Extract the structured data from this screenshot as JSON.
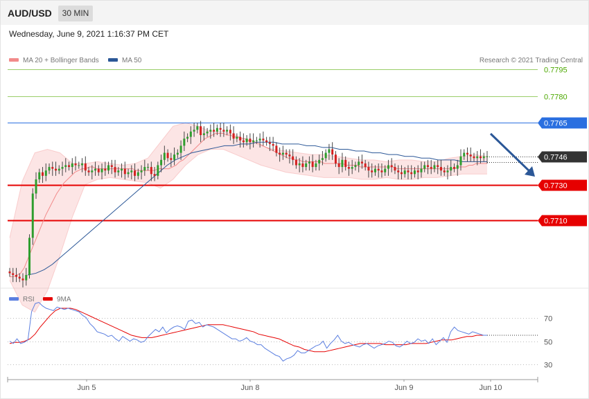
{
  "header": {
    "symbol": "AUD/USD",
    "timeframe": "30 MIN",
    "datetime": "Wednesday, June 9, 2021 1:16:37 PM CET"
  },
  "colors": {
    "bollinger": "#f28a8a",
    "ma50": "#2b5797",
    "pivot_blue": "#2a6fe0",
    "support_red": "#e60000",
    "resistance_green": "#9acd68",
    "current_price": "#333333",
    "rsi": "#5b7fe0",
    "rsi_ma": "#e60000"
  },
  "chart_data": [
    {
      "type": "candlestick",
      "legend": [
        {
          "name": "MA 20 + Bollinger Bands",
          "icon": "legend-swatch"
        },
        {
          "name": "MA 50",
          "icon": "legend-swatch"
        }
      ],
      "copyright": "Research © 2021 Trading Central",
      "ylim": [
        0.767,
        0.7803
      ],
      "x_ticks": [
        "Jun 5",
        "Jun 8",
        "Jun 9",
        "Jun 10"
      ],
      "levels": [
        {
          "value": 0.7795,
          "label": "0.7795",
          "role": "resistance"
        },
        {
          "value": 0.778,
          "label": "0.7780",
          "role": "resistance"
        },
        {
          "value": 0.7765,
          "label": "0.7765",
          "role": "pivot"
        },
        {
          "value": 0.7746,
          "label": "0.7746",
          "role": "current"
        },
        {
          "value": 0.773,
          "label": "0.7730",
          "role": "support"
        },
        {
          "value": 0.771,
          "label": "0.7710",
          "role": "support"
        }
      ],
      "close": [
        0.768,
        0.7679,
        0.7678,
        0.7677,
        0.7676,
        0.7679,
        0.77,
        0.7725,
        0.7733,
        0.7737,
        0.7735,
        0.7738,
        0.774,
        0.7739,
        0.7738,
        0.7739,
        0.774,
        0.7741,
        0.774,
        0.7742,
        0.7741,
        0.7741,
        0.7742,
        0.7738,
        0.7737,
        0.7738,
        0.7739,
        0.7737,
        0.7739,
        0.7738,
        0.7741,
        0.774,
        0.7737,
        0.7738,
        0.7739,
        0.7736,
        0.7737,
        0.7738,
        0.7735,
        0.7737,
        0.7738,
        0.774,
        0.774,
        0.7736,
        0.7735,
        0.7741,
        0.7744,
        0.7748,
        0.7745,
        0.7744,
        0.7747,
        0.7748,
        0.7752,
        0.7756,
        0.7757,
        0.776,
        0.7761,
        0.7763,
        0.7758,
        0.7759,
        0.776,
        0.7761,
        0.776,
        0.7762,
        0.7761,
        0.776,
        0.7761,
        0.7759,
        0.7756,
        0.7757,
        0.7755,
        0.7754,
        0.7756,
        0.7754,
        0.7755,
        0.7755,
        0.7756,
        0.7755,
        0.7754,
        0.7753,
        0.7752,
        0.7748,
        0.7747,
        0.7748,
        0.7747,
        0.7746,
        0.7744,
        0.7741,
        0.7742,
        0.774,
        0.7742,
        0.7743,
        0.774,
        0.7742,
        0.7744,
        0.7745,
        0.7748,
        0.775,
        0.7747,
        0.7742,
        0.774,
        0.7744,
        0.774,
        0.7739,
        0.774,
        0.7741,
        0.7743,
        0.7742,
        0.774,
        0.7738,
        0.7737,
        0.7739,
        0.7738,
        0.7737,
        0.7739,
        0.7741,
        0.774,
        0.7738,
        0.7737,
        0.7736,
        0.7738,
        0.7737,
        0.7736,
        0.7738,
        0.7737,
        0.7739,
        0.7741,
        0.774,
        0.7739,
        0.7741,
        0.774,
        0.7738,
        0.7737,
        0.7738,
        0.774,
        0.7739,
        0.7741,
        0.7746,
        0.7748,
        0.7747,
        0.7746,
        0.7745,
        0.7746,
        0.7745,
        0.7746,
        0.7746
      ],
      "ma20": [
        0.7678,
        0.7678,
        0.7679,
        0.768,
        0.7683,
        0.7688,
        0.7693,
        0.7698,
        0.7703,
        0.7708,
        0.7713,
        0.7717,
        0.7721,
        0.7725,
        0.7728,
        0.7731,
        0.7733,
        0.7735,
        0.7737,
        0.7738,
        0.7739,
        0.7739,
        0.774,
        0.774,
        0.7739,
        0.7739,
        0.7739,
        0.7739,
        0.7739,
        0.7739,
        0.7739,
        0.7739,
        0.7739,
        0.7739,
        0.7739,
        0.7738,
        0.7738,
        0.7738,
        0.7738,
        0.7738,
        0.7738,
        0.7739,
        0.7739,
        0.7739,
        0.7739,
        0.774,
        0.7741,
        0.7743,
        0.7744,
        0.7746,
        0.7748,
        0.775,
        0.7752,
        0.7754,
        0.7756,
        0.7757,
        0.7758,
        0.7759,
        0.7759,
        0.7759,
        0.7758,
        0.7758,
        0.7757,
        0.7757,
        0.7756,
        0.7756,
        0.7755,
        0.7755,
        0.7754,
        0.7753,
        0.7752,
        0.7751,
        0.775,
        0.7749,
        0.7748,
        0.7747,
        0.7746,
        0.7745,
        0.7745,
        0.7744,
        0.7744,
        0.7743,
        0.7743,
        0.7743,
        0.7743,
        0.7743,
        0.7743,
        0.7742,
        0.7742,
        0.7742,
        0.7742,
        0.7742,
        0.7742,
        0.7741,
        0.7741,
        0.7741,
        0.7741,
        0.774,
        0.774,
        0.774,
        0.774,
        0.774,
        0.774,
        0.774,
        0.774,
        0.774,
        0.774,
        0.7739,
        0.7739,
        0.7739,
        0.7739,
        0.7739,
        0.7739,
        0.7739,
        0.7739,
        0.7739,
        0.7739,
        0.7739,
        0.7739,
        0.7739,
        0.7739,
        0.7739,
        0.7739,
        0.7739,
        0.774,
        0.774,
        0.774,
        0.7741,
        0.7741,
        0.7742,
        0.7742,
        0.7742,
        0.7742
      ],
      "ma50": [
        0.7679,
        0.768,
        0.7682,
        0.7685,
        0.7689,
        0.7693,
        0.7697,
        0.7701,
        0.7705,
        0.7709,
        0.7713,
        0.7717,
        0.7721,
        0.7725,
        0.7729,
        0.7733,
        0.7737,
        0.7741,
        0.7744,
        0.7746,
        0.7748,
        0.7749,
        0.775,
        0.7751,
        0.7752,
        0.7752,
        0.7753,
        0.7753,
        0.7754,
        0.7754,
        0.7754,
        0.7753,
        0.7753,
        0.7753,
        0.7752,
        0.7752,
        0.7751,
        0.7751,
        0.775,
        0.775,
        0.7749,
        0.7749,
        0.7748,
        0.7748,
        0.7747,
        0.7747,
        0.7746,
        0.7746,
        0.7745,
        0.7745,
        0.7744,
        0.7744,
        0.7744,
        0.7743,
        0.7743,
        0.7743,
        0.7743
      ],
      "upper_band": [
        0.77,
        0.7732,
        0.7748,
        0.775,
        0.7748,
        0.7742,
        0.7742,
        0.7743,
        0.7742,
        0.7741,
        0.7742,
        0.7745,
        0.7754,
        0.7763,
        0.7765,
        0.7763,
        0.776,
        0.776,
        0.7758,
        0.7755,
        0.7752,
        0.775,
        0.7749,
        0.7748,
        0.7747,
        0.7747,
        0.7746,
        0.7745,
        0.7744,
        0.7744,
        0.7743,
        0.7744,
        0.7744,
        0.7743,
        0.7743,
        0.7745,
        0.7746,
        0.7747,
        0.7746
      ],
      "lower_band": [
        0.7676,
        0.7662,
        0.7658,
        0.767,
        0.769,
        0.7712,
        0.773,
        0.7733,
        0.7734,
        0.7733,
        0.7732,
        0.7731,
        0.7728,
        0.7733,
        0.7741,
        0.7747,
        0.775,
        0.775,
        0.7747,
        0.7744,
        0.7741,
        0.7739,
        0.7737,
        0.7736,
        0.7735,
        0.7734,
        0.7734,
        0.7734,
        0.7733,
        0.7733,
        0.7734,
        0.7733,
        0.7733,
        0.7734,
        0.7734,
        0.7735,
        0.7736,
        0.7736,
        0.7736
      ]
    },
    {
      "type": "line",
      "legend": [
        {
          "name": "RSI",
          "icon": "legend-swatch"
        },
        {
          "name": "9MA",
          "icon": "legend-swatch"
        }
      ],
      "ylim": [
        22,
        78
      ],
      "y_ticks": [
        70,
        50,
        30
      ],
      "series": [
        {
          "name": "RSI",
          "values": [
            50,
            48,
            52,
            48,
            49,
            51,
            75,
            82,
            83,
            80,
            78,
            77,
            76,
            79,
            78,
            77,
            78,
            77,
            76,
            75,
            72,
            70,
            65,
            62,
            58,
            57,
            56,
            54,
            55,
            52,
            50,
            54,
            52,
            50,
            52,
            51,
            49,
            50,
            54,
            57,
            60,
            58,
            62,
            57,
            60,
            62,
            63,
            62,
            60,
            67,
            68,
            65,
            66,
            62,
            64,
            63,
            62,
            60,
            58,
            56,
            54,
            52,
            52,
            50,
            51,
            53,
            50,
            49,
            47,
            47,
            44,
            42,
            40,
            38,
            37,
            33,
            35,
            36,
            38,
            42,
            40,
            40,
            42,
            44,
            46,
            47,
            50,
            44,
            48,
            51,
            55,
            50,
            48,
            49,
            47,
            46,
            45,
            47,
            48,
            46,
            44,
            46,
            47,
            48,
            50,
            49,
            46,
            45,
            47,
            50,
            48,
            49,
            52,
            50,
            51,
            48,
            52,
            47,
            50,
            53,
            49,
            58,
            62,
            59,
            58,
            57,
            56,
            58,
            57,
            56,
            55,
            55
          ]
        },
        {
          "name": "9MA",
          "values": [
            48,
            49,
            49,
            50,
            52,
            56,
            62,
            67,
            72,
            76,
            78,
            78,
            78,
            77,
            75,
            73,
            71,
            69,
            67,
            65,
            63,
            61,
            59,
            57,
            55,
            54,
            53,
            53,
            53,
            54,
            55,
            56,
            57,
            58,
            59,
            60,
            61,
            62,
            63,
            64,
            64,
            64,
            64,
            63,
            62,
            61,
            60,
            59,
            58,
            56,
            55,
            54,
            53,
            52,
            50,
            48,
            46,
            45,
            43,
            42,
            41,
            41,
            41,
            42,
            43,
            44,
            45,
            46,
            47,
            48,
            48,
            48,
            48,
            48,
            47,
            47,
            47,
            47,
            47,
            48,
            48,
            48,
            48,
            49,
            50,
            51,
            51,
            51,
            52,
            53,
            54,
            54,
            55,
            55,
            55
          ]
        }
      ]
    }
  ]
}
